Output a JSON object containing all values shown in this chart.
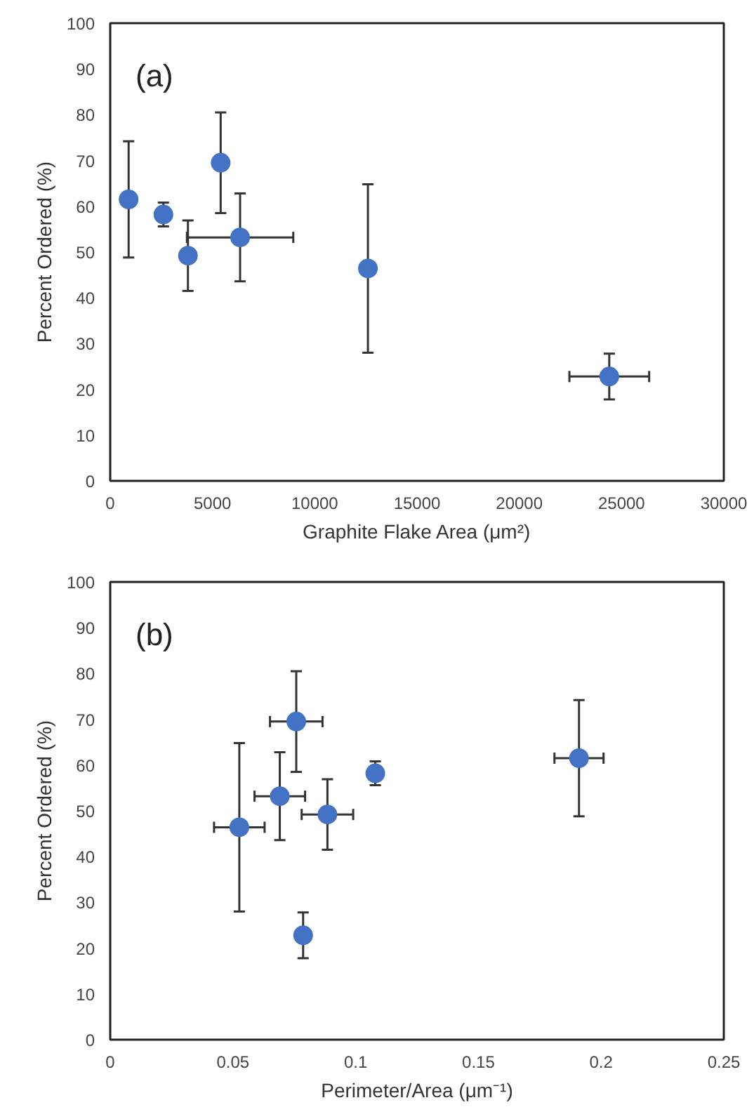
{
  "chart_data": [
    {
      "type": "scatter",
      "annotations": [
        "(a)"
      ],
      "xlabel": "Graphite Flake Area (μm²)",
      "ylabel": "Percent Ordered (%)",
      "xlim": [
        0,
        30000
      ],
      "ylim": [
        0,
        100
      ],
      "xticks": [
        0,
        5000,
        10000,
        15000,
        20000,
        25000,
        30000
      ],
      "yticks": [
        0,
        10,
        20,
        30,
        40,
        50,
        60,
        70,
        80,
        90,
        100
      ],
      "grid": false,
      "marker": "circle",
      "series": [
        {
          "color": "#4472c4",
          "x": [
            900,
            2600,
            3800,
            5400,
            6350,
            12600,
            24400
          ],
          "values": [
            61.5,
            58.2,
            49.2,
            69.5,
            53.2,
            46.4,
            22.8
          ],
          "errors": [
            12.7,
            2.6,
            7.7,
            11,
            9.6,
            18.4,
            5
          ],
          "xerrors": [
            null,
            null,
            null,
            null,
            2600,
            null,
            1950
          ]
        }
      ]
    },
    {
      "type": "scatter",
      "annotations": [
        "(b)"
      ],
      "xlabel": "Perimeter/Area (μm⁻¹)",
      "ylabel": "Percent Ordered (%)",
      "xlim": [
        0,
        0.25
      ],
      "ylim": [
        0,
        100
      ],
      "xticks": [
        0,
        0.05,
        0.1,
        0.15,
        0.2,
        0.25
      ],
      "yticks": [
        0,
        10,
        20,
        30,
        40,
        50,
        60,
        70,
        80,
        90,
        100
      ],
      "grid": false,
      "marker": "circle",
      "series": [
        {
          "color": "#4472c4",
          "x": [
            0.191,
            0.108,
            0.0885,
            0.0758,
            0.0691,
            0.0526,
            0.0786
          ],
          "values": [
            61.5,
            58.2,
            49.2,
            69.5,
            53.2,
            46.4,
            22.8
          ],
          "errors": [
            12.7,
            2.6,
            7.7,
            11,
            9.6,
            18.4,
            5
          ],
          "xerrors": [
            0.01,
            null,
            0.0105,
            0.0107,
            0.0103,
            0.0103,
            null
          ]
        }
      ]
    }
  ]
}
